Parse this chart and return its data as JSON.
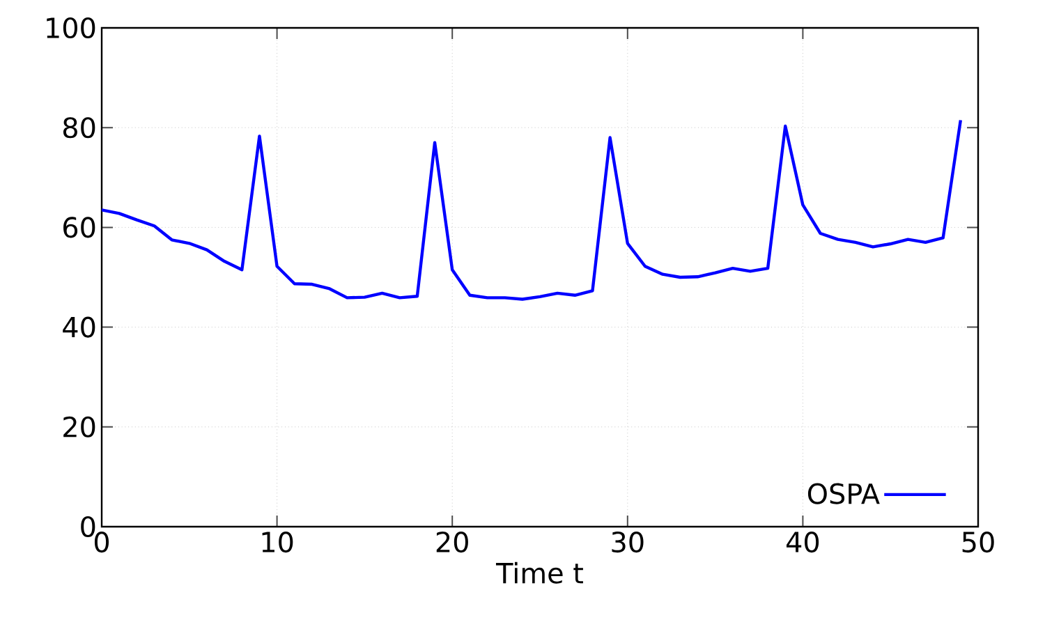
{
  "chart_data": {
    "type": "line",
    "xlabel": "Time t",
    "x": [
      0,
      1,
      2,
      3,
      4,
      5,
      6,
      7,
      8,
      9,
      10,
      11,
      12,
      13,
      14,
      15,
      16,
      17,
      18,
      19,
      20,
      21,
      22,
      23,
      24,
      25,
      26,
      27,
      28,
      29,
      30,
      31,
      32,
      33,
      34,
      35,
      36,
      37,
      38,
      39,
      40,
      41,
      42,
      43,
      44,
      45,
      46,
      47,
      48,
      49
    ],
    "series": [
      {
        "name": "OSPA",
        "color": "#0000ff",
        "values": [
          63.5,
          62.8,
          61.5,
          60.3,
          57.5,
          56.8,
          55.5,
          53.2,
          51.5,
          78.3,
          52.2,
          48.7,
          48.6,
          47.7,
          45.9,
          46,
          46.8,
          45.9,
          46.2,
          77,
          51.5,
          46.4,
          45.9,
          45.9,
          45.6,
          46.1,
          46.8,
          46.4,
          47.3,
          78,
          56.8,
          52.2,
          50.6,
          50,
          50.1,
          50.9,
          51.8,
          51.2,
          51.8,
          80.3,
          64.5,
          58.8,
          57.6,
          57,
          56.1,
          56.7,
          57.6,
          57,
          57.9,
          81.5
        ]
      }
    ],
    "xlim": [
      0,
      50
    ],
    "ylim": [
      0,
      100
    ],
    "xticks": [
      0,
      10,
      20,
      30,
      40,
      50
    ],
    "yticks": [
      0,
      20,
      40,
      60,
      80,
      100
    ],
    "grid": true,
    "legend": "bottom right",
    "marker": "none",
    "line_style": "solid"
  }
}
